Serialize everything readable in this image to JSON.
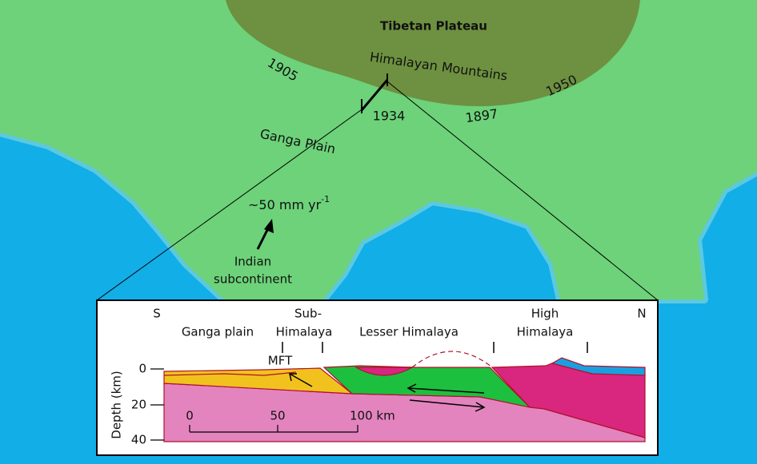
{
  "map": {
    "title": "Tibetan Plateau",
    "range": "Himalayan Mountains",
    "quakes": [
      "1905",
      "1934",
      "1897",
      "1950"
    ],
    "plain": "Ganga Plain",
    "rate": {
      "text": "~50 mm yr",
      "sup": "-1"
    },
    "plate": [
      "Indian",
      "subcontinent"
    ]
  },
  "section": {
    "south": "S",
    "north": "N",
    "zones": {
      "ganga": "Ganga plain",
      "sub": [
        "Sub-",
        "Himalaya"
      ],
      "lesser": "Lesser Himalaya",
      "high": [
        "High",
        "Himalaya"
      ]
    },
    "fault": "MFT",
    "axis": {
      "label": "Depth (km)",
      "ticks": [
        "0",
        "20",
        "40"
      ]
    },
    "scale": [
      "0",
      "50",
      "100 km"
    ]
  }
}
